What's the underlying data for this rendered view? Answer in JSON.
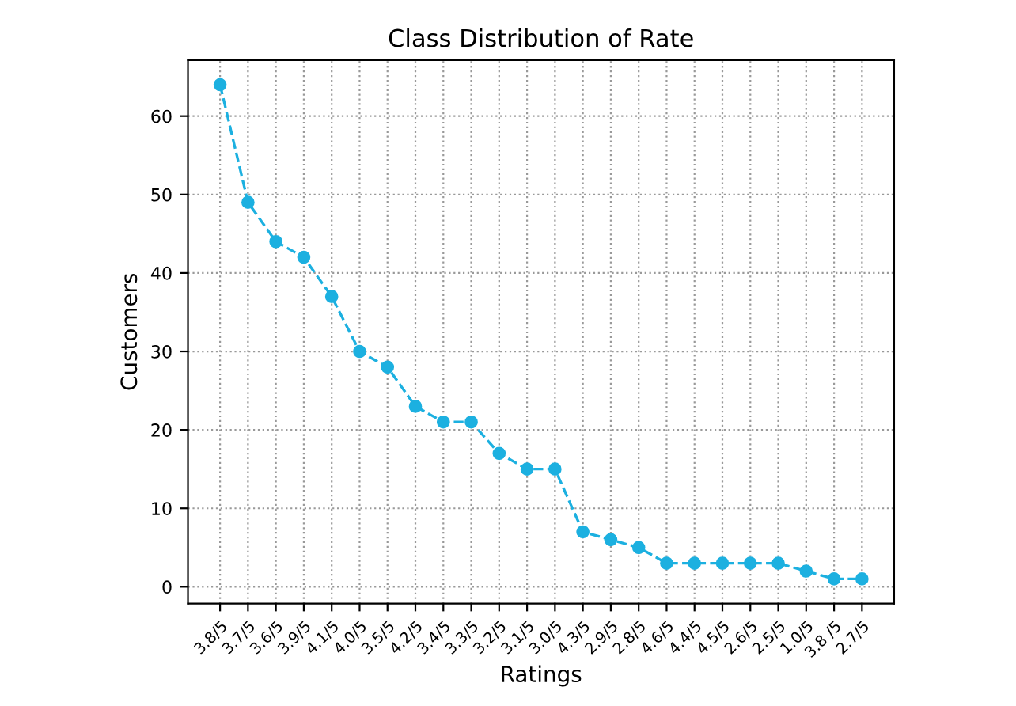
{
  "chart_data": {
    "type": "line",
    "title": "Class Distribution of Rate",
    "xlabel": "Ratings",
    "ylabel": "Customers",
    "categories": [
      "3.8/5",
      "3.7/5",
      "3.6/5",
      "3.9/5",
      "4.1/5",
      "4.0/5",
      "3.5/5",
      "4.2/5",
      "3.4/5",
      "3.3/5",
      "3.2/5",
      "3.1/5",
      "3.0/5",
      "4.3/5",
      "2.9/5",
      "2.8/5",
      "4.6/5",
      "4.4/5",
      "4.5/5",
      "2.6/5",
      "2.5/5",
      "1.0/5",
      "3.8 /5",
      "2.7/5"
    ],
    "series": [
      {
        "color": "#1cb0e0",
        "values": [
          64,
          49,
          44,
          42,
          37,
          30,
          28,
          23,
          21,
          21,
          17,
          15,
          15,
          7,
          6,
          5,
          3,
          3,
          3,
          3,
          3,
          2,
          1,
          1
        ]
      }
    ],
    "ylim": [
      -2.15,
      67.15
    ],
    "yticks": [
      0,
      10,
      20,
      30,
      40,
      50,
      60
    ],
    "grid": true,
    "marker": "circle",
    "line_style": "dashed"
  }
}
